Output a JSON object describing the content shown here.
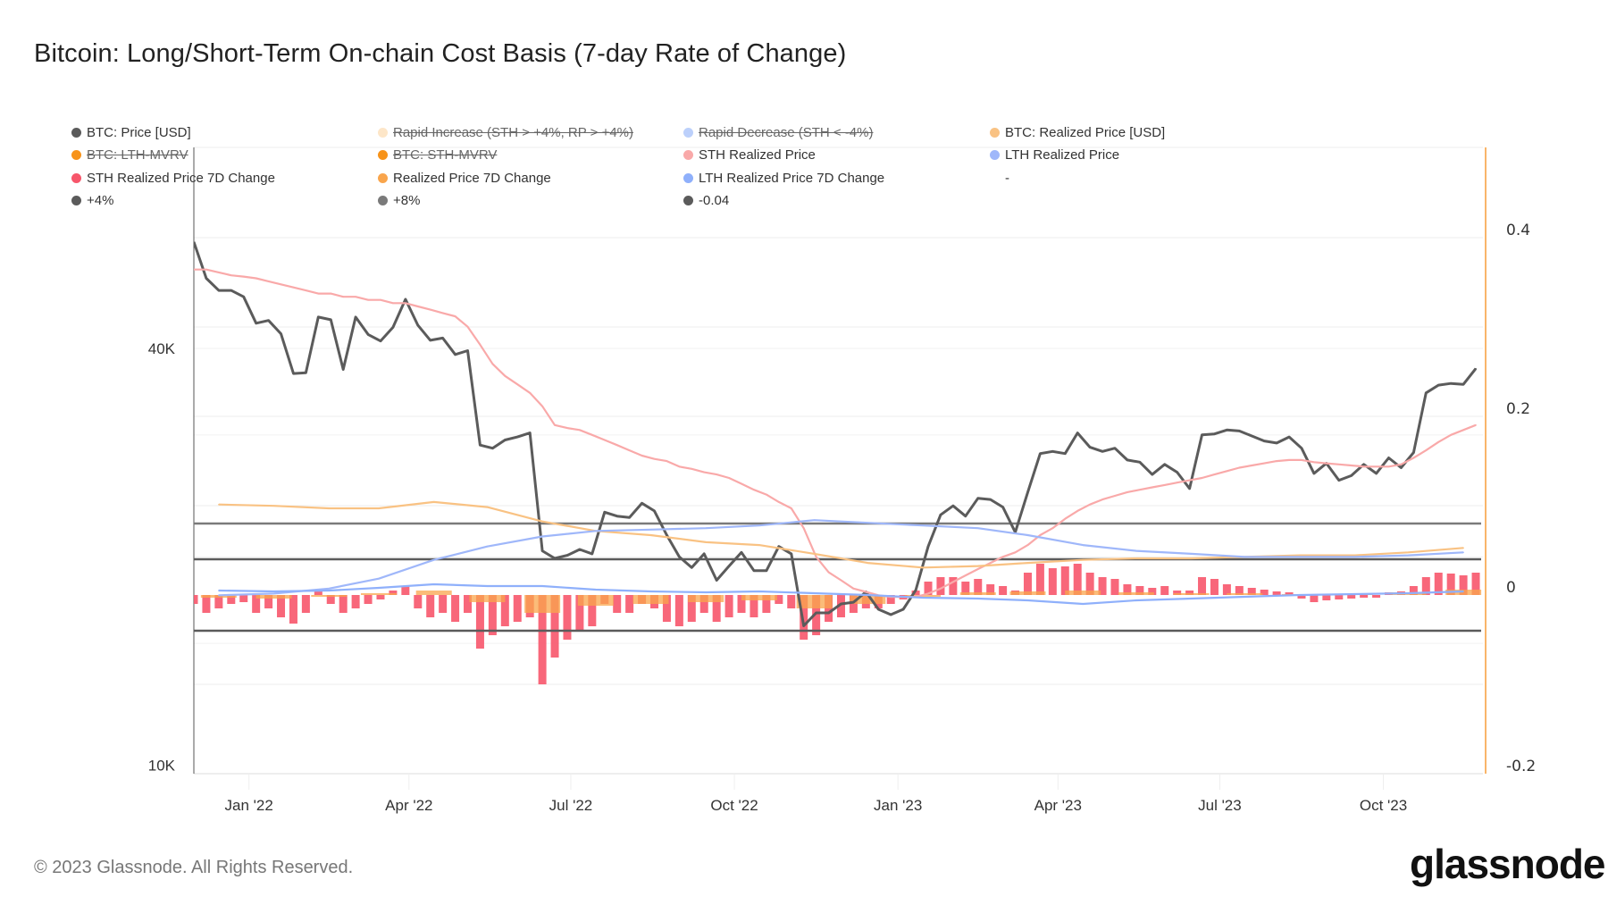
{
  "title": "Bitcoin: Long/Short-Term On-chain Cost Basis (7-day Rate of Change)",
  "legend": [
    {
      "label": "BTC: Price [USD]",
      "color": "#5b5b5b",
      "hidden": false
    },
    {
      "label": "Rapid Increase (STH > +4%, RP > +4%)",
      "color": "#fde6c8",
      "hidden": true
    },
    {
      "label": "Rapid Decrease (STH < -4%)",
      "color": "#bcd0fb",
      "hidden": true
    },
    {
      "label": "BTC: Realized Price [USD]",
      "color": "#f9c283",
      "hidden": false
    },
    {
      "label": "BTC: LTH-MVRV",
      "color": "#f7931a",
      "hidden": true
    },
    {
      "label": "BTC: STH-MVRV",
      "color": "#f7931a",
      "hidden": true
    },
    {
      "label": "STH Realized Price",
      "color": "#f9a9a9",
      "hidden": false
    },
    {
      "label": "LTH Realized Price",
      "color": "#9fb7fa",
      "hidden": false
    },
    {
      "label": "STH Realized Price 7D Change",
      "color": "#f7566b",
      "hidden": false
    },
    {
      "label": "Realized Price 7D Change",
      "color": "#f9a54c",
      "hidden": false
    },
    {
      "label": "LTH Realized Price 7D Change",
      "color": "#8fb0fb",
      "hidden": false
    },
    {
      "label": "-",
      "color": "",
      "hidden": false
    },
    {
      "label": "+4%",
      "color": "#5b5b5b",
      "hidden": false
    },
    {
      "label": "+8%",
      "color": "#7a7a7a",
      "hidden": false
    },
    {
      "label": "-0.04",
      "color": "#5b5b5b",
      "hidden": false
    }
  ],
  "chart_data": {
    "type": "line",
    "title": "Bitcoin: Long/Short-Term On-chain Cost Basis (7-day Rate of Change)",
    "x_ticks": [
      "Jan '22",
      "Apr '22",
      "Jul '22",
      "Oct '22",
      "Jan '23",
      "Apr '23",
      "Jul '23",
      "Oct '23"
    ],
    "x_tick_dates": [
      "2022-01-01",
      "2022-04-01",
      "2022-07-01",
      "2022-10-01",
      "2023-01-01",
      "2023-04-01",
      "2023-07-01",
      "2023-10-01"
    ],
    "xlim": [
      "2021-12-01",
      "2023-11-26"
    ],
    "y_left": {
      "scale": "log",
      "ticks": [
        "40K",
        "10K"
      ],
      "tick_values": [
        40000,
        10000
      ]
    },
    "y_right": {
      "scale": "linear",
      "ticks": [
        "0.4",
        "0.2",
        "0",
        "-0.2"
      ],
      "tick_values": [
        0.4,
        0.2,
        0,
        -0.2
      ],
      "lim": [
        -0.21,
        0.49
      ]
    },
    "grid": true,
    "legend_position": "top",
    "weekly_x": [
      "2021-12-01",
      "2021-12-08",
      "2021-12-15",
      "2021-12-22",
      "2021-12-29",
      "2022-01-05",
      "2022-01-12",
      "2022-01-19",
      "2022-01-26",
      "2022-02-02",
      "2022-02-09",
      "2022-02-16",
      "2022-02-23",
      "2022-03-02",
      "2022-03-09",
      "2022-03-16",
      "2022-03-23",
      "2022-03-30",
      "2022-04-06",
      "2022-04-13",
      "2022-04-20",
      "2022-04-27",
      "2022-05-04",
      "2022-05-11",
      "2022-05-18",
      "2022-05-25",
      "2022-06-01",
      "2022-06-08",
      "2022-06-15",
      "2022-06-22",
      "2022-06-29",
      "2022-07-06",
      "2022-07-13",
      "2022-07-20",
      "2022-07-27",
      "2022-08-03",
      "2022-08-10",
      "2022-08-17",
      "2022-08-24",
      "2022-08-31",
      "2022-09-07",
      "2022-09-14",
      "2022-09-21",
      "2022-09-28",
      "2022-10-05",
      "2022-10-12",
      "2022-10-19",
      "2022-10-26",
      "2022-11-02",
      "2022-11-09",
      "2022-11-16",
      "2022-11-23",
      "2022-11-30",
      "2022-12-07",
      "2022-12-14",
      "2022-12-21",
      "2022-12-28",
      "2023-01-04",
      "2023-01-11",
      "2023-01-18",
      "2023-01-25",
      "2023-02-01",
      "2023-02-08",
      "2023-02-15",
      "2023-02-22",
      "2023-03-01",
      "2023-03-08",
      "2023-03-15",
      "2023-03-22",
      "2023-03-29",
      "2023-04-05",
      "2023-04-12",
      "2023-04-19",
      "2023-04-26",
      "2023-05-03",
      "2023-05-10",
      "2023-05-17",
      "2023-05-24",
      "2023-05-31",
      "2023-06-07",
      "2023-06-14",
      "2023-06-21",
      "2023-06-28",
      "2023-07-05",
      "2023-07-12",
      "2023-07-19",
      "2023-07-26",
      "2023-08-02",
      "2023-08-09",
      "2023-08-16",
      "2023-08-23",
      "2023-08-30",
      "2023-09-06",
      "2023-09-13",
      "2023-09-20",
      "2023-09-27",
      "2023-10-04",
      "2023-10-11",
      "2023-10-18",
      "2023-10-25",
      "2023-11-01",
      "2023-11-08",
      "2023-11-15",
      "2023-11-22"
    ],
    "monthly_x": [
      "2021-12-15",
      "2022-01-15",
      "2022-02-15",
      "2022-03-15",
      "2022-04-15",
      "2022-05-15",
      "2022-06-15",
      "2022-07-15",
      "2022-08-15",
      "2022-09-15",
      "2022-10-15",
      "2022-11-15",
      "2022-12-15",
      "2023-01-15",
      "2023-02-15",
      "2023-03-15",
      "2023-04-15",
      "2023-05-15",
      "2023-06-15",
      "2023-07-15",
      "2023-08-15",
      "2023-09-15",
      "2023-10-15",
      "2023-11-15"
    ],
    "series": [
      {
        "name": "BTC: Price [USD]",
        "axis": "left",
        "x": "weekly_x",
        "kind": "line",
        "color": "#5b5b5b",
        "values": [
          57000,
          50500,
          48500,
          48500,
          47500,
          43500,
          43900,
          42000,
          36800,
          36900,
          44400,
          44000,
          37300,
          44400,
          41900,
          41000,
          42900,
          47100,
          43200,
          41100,
          41400,
          39200,
          39700,
          29000,
          28700,
          29500,
          29800,
          30200,
          20400,
          19900,
          20100,
          20500,
          20200,
          23200,
          22900,
          22800,
          23900,
          23300,
          21500,
          20000,
          19300,
          20200,
          18500,
          19400,
          20300,
          19100,
          19100,
          20700,
          20200,
          15900,
          16600,
          16600,
          17100,
          17200,
          17800,
          16800,
          16500,
          16800,
          17900,
          20700,
          23000,
          23700,
          22900,
          24300,
          24200,
          23600,
          21700,
          24800,
          28200,
          28400,
          28200,
          30200,
          28800,
          28400,
          28700,
          27600,
          27400,
          26300,
          27200,
          26500,
          25100,
          30000,
          30100,
          30500,
          30400,
          29900,
          29400,
          29200,
          29800,
          28700,
          26400,
          27300,
          25800,
          26200,
          27200,
          26400,
          27800,
          26900,
          28300,
          34500,
          35400,
          35600,
          35500,
          37400
        ]
      },
      {
        "name": "STH Realized Price",
        "axis": "left",
        "x": "weekly_x",
        "kind": "line",
        "color": "#f9a9a9",
        "values": [
          52000,
          52000,
          51500,
          51000,
          50800,
          50500,
          50000,
          49500,
          49000,
          48500,
          48000,
          48000,
          47500,
          47500,
          47000,
          47000,
          46500,
          46500,
          46000,
          45500,
          45000,
          44500,
          43000,
          40500,
          38000,
          36500,
          35500,
          34500,
          33000,
          31000,
          30700,
          30500,
          30000,
          29500,
          29000,
          28500,
          28000,
          27700,
          27500,
          27000,
          26800,
          26500,
          26300,
          26000,
          25500,
          25000,
          24600,
          24000,
          23500,
          22000,
          20000,
          19000,
          18500,
          18000,
          17800,
          17600,
          17500,
          17500,
          17500,
          17700,
          18000,
          18400,
          18800,
          19200,
          19600,
          20000,
          20300,
          20800,
          21500,
          22000,
          22700,
          23300,
          23800,
          24200,
          24500,
          24800,
          25000,
          25200,
          25400,
          25600,
          25800,
          26000,
          26300,
          26600,
          26900,
          27100,
          27300,
          27500,
          27600,
          27600,
          27400,
          27300,
          27200,
          27100,
          27000,
          27000,
          27000,
          27200,
          27800,
          28500,
          29300,
          30000,
          30500,
          31000
        ]
      },
      {
        "name": "BTC: Realized Price [USD]",
        "axis": "left",
        "x": "monthly_x",
        "kind": "line",
        "color": "#f9c283",
        "values": [
          23800,
          23700,
          23500,
          23500,
          24000,
          23600,
          22500,
          21800,
          21500,
          21000,
          20800,
          20200,
          19600,
          19300,
          19400,
          19600,
          19800,
          19900,
          19900,
          20000,
          20100,
          20100,
          20300,
          20600
        ]
      },
      {
        "name": "LTH Realized Price",
        "axis": "left",
        "x": "monthly_x",
        "kind": "line",
        "color": "#9fb7fa",
        "values": [
          17600,
          17700,
          18000,
          18600,
          19800,
          20700,
          21400,
          21800,
          21900,
          22000,
          22200,
          22600,
          22400,
          22200,
          22000,
          21500,
          20800,
          20400,
          20200,
          20000,
          20000,
          20000,
          20100,
          20300
        ]
      },
      {
        "name": "STH Realized Price 7D Change",
        "axis": "right",
        "x": "weekly_x",
        "kind": "bar",
        "color": "#f7566b",
        "values": [
          -0.01,
          -0.02,
          -0.015,
          -0.01,
          -0.008,
          -0.02,
          -0.015,
          -0.025,
          -0.032,
          -0.02,
          0.005,
          -0.01,
          -0.02,
          -0.015,
          -0.01,
          -0.005,
          0.005,
          0.01,
          -0.015,
          -0.025,
          -0.02,
          -0.03,
          -0.02,
          -0.06,
          -0.045,
          -0.035,
          -0.03,
          -0.025,
          -0.1,
          -0.07,
          -0.05,
          -0.04,
          -0.035,
          -0.01,
          -0.02,
          -0.02,
          -0.01,
          -0.015,
          -0.03,
          -0.035,
          -0.03,
          -0.02,
          -0.03,
          -0.025,
          -0.02,
          -0.025,
          -0.02,
          -0.01,
          -0.015,
          -0.05,
          -0.045,
          -0.03,
          -0.025,
          -0.02,
          -0.015,
          -0.015,
          -0.01,
          -0.005,
          0.005,
          0.015,
          0.02,
          0.02,
          0.015,
          0.018,
          0.012,
          0.01,
          0.005,
          0.025,
          0.035,
          0.03,
          0.032,
          0.035,
          0.025,
          0.02,
          0.018,
          0.012,
          0.01,
          0.008,
          0.01,
          0.005,
          0.005,
          0.02,
          0.018,
          0.012,
          0.01,
          0.008,
          0.006,
          0.004,
          0.003,
          -0.004,
          -0.008,
          -0.006,
          -0.005,
          -0.004,
          -0.003,
          -0.003,
          0.003,
          0.004,
          0.01,
          0.02,
          0.025,
          0.024,
          0.022,
          0.025
        ]
      },
      {
        "name": "Realized Price 7D Change",
        "axis": "right",
        "x": "monthly_x",
        "kind": "bar",
        "color": "#f9a54c",
        "values": [
          -0.003,
          -0.004,
          -0.002,
          0.002,
          0.005,
          -0.008,
          -0.02,
          -0.012,
          -0.01,
          -0.008,
          -0.006,
          -0.015,
          -0.01,
          -0.002,
          0.003,
          0.004,
          0.005,
          0.003,
          0.002,
          0.002,
          0.001,
          0.001,
          0.003,
          0.006
        ]
      },
      {
        "name": "LTH Realized Price 7D Change",
        "axis": "right",
        "x": "monthly_x",
        "kind": "line",
        "color": "#8fb0fb",
        "values": [
          0.005,
          0.004,
          0.005,
          0.008,
          0.012,
          0.01,
          0.01,
          0.006,
          0.004,
          0.003,
          0.004,
          0.002,
          0.0,
          -0.003,
          -0.004,
          -0.006,
          -0.01,
          -0.006,
          -0.004,
          -0.002,
          0.0,
          0.001,
          0.002,
          0.004
        ]
      },
      {
        "name": "+8%",
        "axis": "right",
        "kind": "hline",
        "color": "#7a7a7a",
        "value": 0.08
      },
      {
        "name": "+4%",
        "axis": "right",
        "kind": "hline",
        "color": "#5b5b5b",
        "value": 0.04
      },
      {
        "name": "-0.04",
        "axis": "right",
        "kind": "hline",
        "color": "#5b5b5b",
        "value": -0.04
      }
    ]
  },
  "footer": {
    "copyright": "© 2023 Glassnode. All Rights Reserved.",
    "logo": "glassnode"
  }
}
